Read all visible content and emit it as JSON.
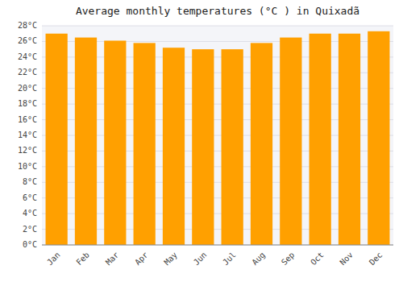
{
  "chart_data": {
    "type": "bar",
    "title": "Average monthly temperatures (°C ) in Quixadã",
    "categories": [
      "Jan",
      "Feb",
      "Mar",
      "Apr",
      "May",
      "Jun",
      "Jul",
      "Aug",
      "Sep",
      "Oct",
      "Nov",
      "Dec"
    ],
    "values": [
      27.0,
      26.5,
      26.1,
      25.8,
      25.2,
      25.0,
      25.0,
      25.8,
      26.5,
      27.0,
      27.0,
      27.3
    ],
    "color": "#FFA000",
    "ylim": [
      0,
      28
    ],
    "yticks": [
      {
        "value": 0,
        "label": "0°C"
      },
      {
        "value": 2,
        "label": "2°C"
      },
      {
        "value": 4,
        "label": "4°C"
      },
      {
        "value": 6,
        "label": "6°C"
      },
      {
        "value": 8,
        "label": "8°C"
      },
      {
        "value": 10,
        "label": "10°C"
      },
      {
        "value": 12,
        "label": "12°C"
      },
      {
        "value": 14,
        "label": "14°C"
      },
      {
        "value": 16,
        "label": "16°C"
      },
      {
        "value": 18,
        "label": "18°C"
      },
      {
        "value": 20,
        "label": "20°C"
      },
      {
        "value": 22,
        "label": "22°C"
      },
      {
        "value": 24,
        "label": "24°C"
      },
      {
        "value": 26,
        "label": "26°C"
      },
      {
        "value": 28,
        "label": "28°C"
      }
    ],
    "grid": true
  }
}
